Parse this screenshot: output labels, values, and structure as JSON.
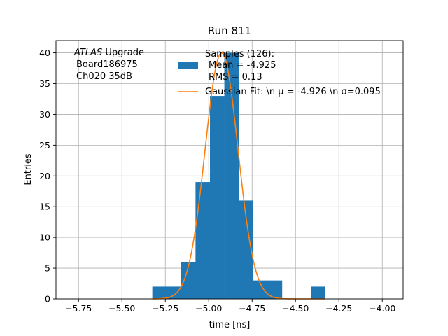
{
  "chart_data": {
    "type": "bar",
    "title": "Run 811",
    "xlabel": "time [ns]",
    "ylabel": "Entries",
    "xlim": [
      -5.88,
      -3.88
    ],
    "ylim": [
      0,
      42
    ],
    "grid": true,
    "xticks": [
      -5.75,
      -5.5,
      -5.25,
      -5.0,
      -4.75,
      -4.5,
      -4.25,
      -4.0
    ],
    "xtick_labels": [
      "−5.75",
      "−5.50",
      "−5.25",
      "−5.00",
      "−4.75",
      "−4.50",
      "−4.25",
      "−4.00"
    ],
    "yticks": [
      0,
      5,
      10,
      15,
      20,
      25,
      30,
      35,
      40
    ],
    "ytick_labels": [
      "0",
      "5",
      "10",
      "15",
      "20",
      "25",
      "30",
      "35",
      "40"
    ],
    "annotation": {
      "experiment": "ATLAS",
      "experiment_suffix": " Upgrade",
      "line2": "Board186975",
      "line3": "Ch020 35dB"
    },
    "legend_position": "top-right",
    "histogram": {
      "name_lines": [
        "Samples (126):",
        "Mean = -4.925",
        "RMS = 0.13"
      ],
      "color": "#1f77b4",
      "bins": [
        {
          "x0": -5.325,
          "x1": -5.242,
          "count": 2
        },
        {
          "x0": -5.242,
          "x1": -5.159,
          "count": 2
        },
        {
          "x0": -5.159,
          "x1": -5.076,
          "count": 6
        },
        {
          "x0": -5.076,
          "x1": -4.993,
          "count": 19
        },
        {
          "x0": -4.993,
          "x1": -4.91,
          "count": 33
        },
        {
          "x0": -4.91,
          "x1": -4.827,
          "count": 40
        },
        {
          "x0": -4.827,
          "x1": -4.744,
          "count": 16
        },
        {
          "x0": -4.744,
          "x1": -4.661,
          "count": 3
        },
        {
          "x0": -4.661,
          "x1": -4.578,
          "count": 3
        },
        {
          "x0": -4.578,
          "x1": -4.495,
          "count": 0
        },
        {
          "x0": -4.495,
          "x1": -4.412,
          "count": 0
        },
        {
          "x0": -4.412,
          "x1": -4.329,
          "count": 2
        }
      ]
    },
    "fit": {
      "name": "Gaussian Fit: \\n μ = -4.926 \\n σ=0.095",
      "color": "#ff7f0e",
      "mu": -4.926,
      "sigma": 0.095,
      "amplitude": 40,
      "x_range": [
        -5.325,
        -4.329
      ]
    }
  }
}
